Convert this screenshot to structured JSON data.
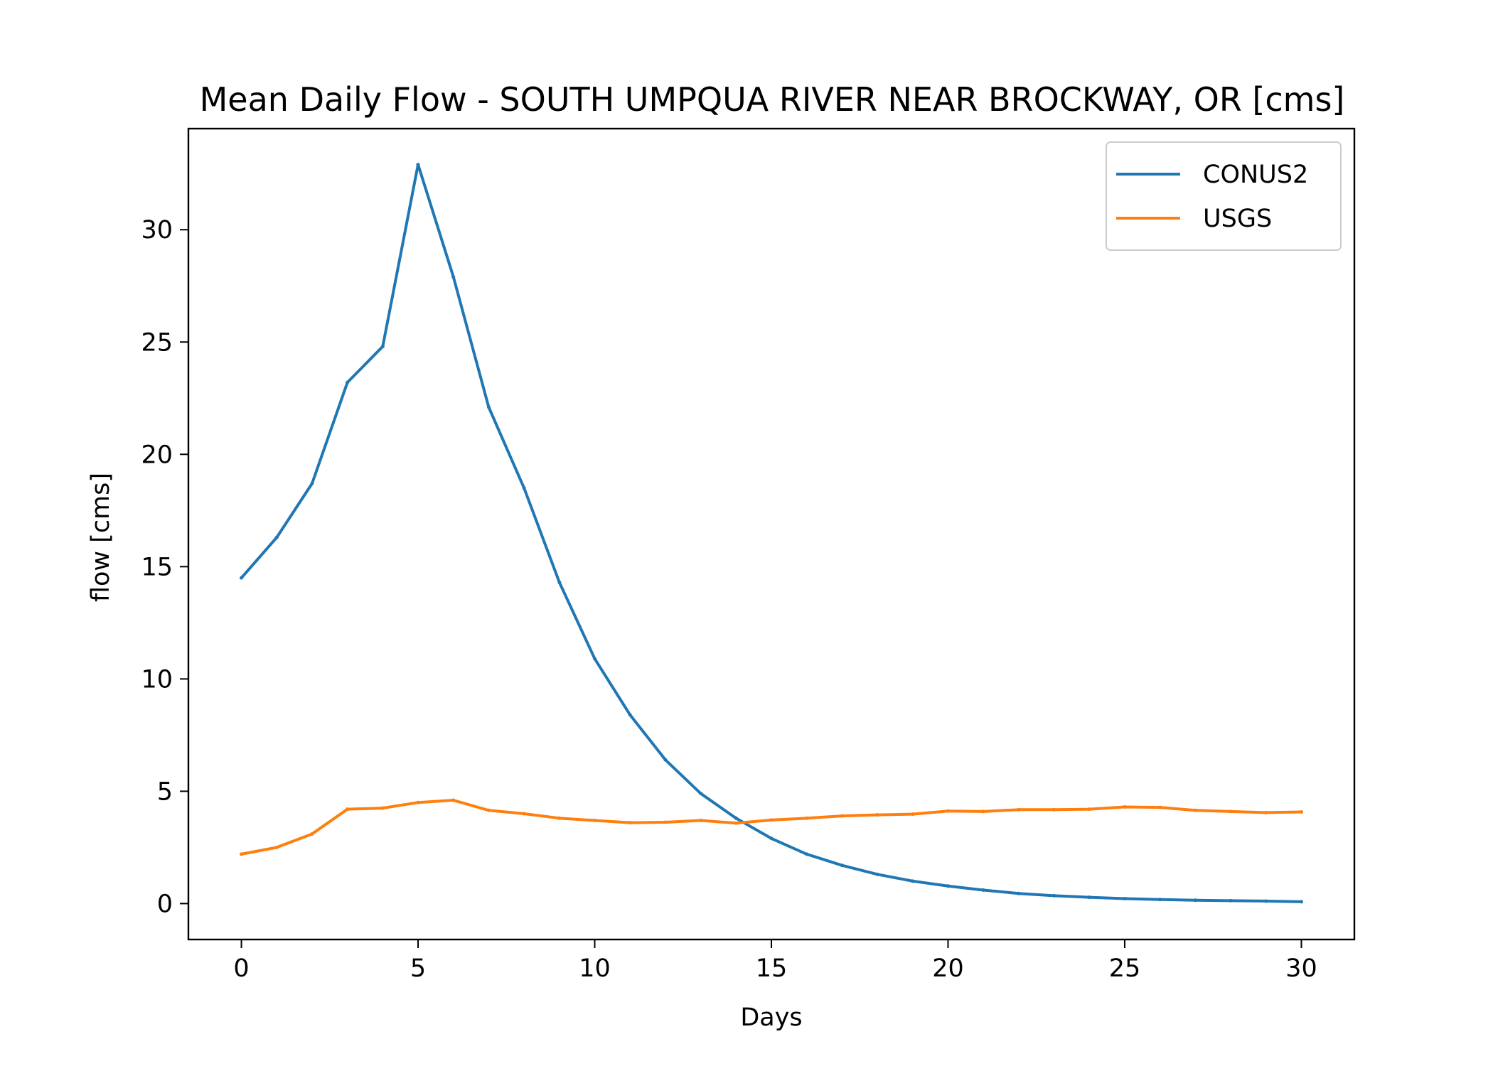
{
  "chart_data": {
    "type": "line",
    "title": "Mean Daily Flow - SOUTH UMPQUA RIVER NEAR BROCKWAY, OR [cms]",
    "xlabel": "Days",
    "ylabel": "flow [cms]",
    "xlim": [
      -1.5,
      31.5
    ],
    "ylim": [
      -1.6,
      34.5
    ],
    "xticks": [
      0,
      5,
      10,
      15,
      20,
      25,
      30
    ],
    "yticks": [
      0,
      5,
      10,
      15,
      20,
      25,
      30
    ],
    "grid": false,
    "legend_position": "top-right",
    "x": [
      0,
      1,
      2,
      3,
      4,
      5,
      6,
      7,
      8,
      9,
      10,
      11,
      12,
      13,
      14,
      15,
      16,
      17,
      18,
      19,
      20,
      21,
      22,
      23,
      24,
      25,
      26,
      27,
      28,
      29,
      30
    ],
    "series": [
      {
        "name": "CONUS2",
        "color": "#1f77b4",
        "values": [
          14.5,
          16.3,
          18.7,
          23.2,
          24.8,
          32.9,
          27.9,
          22.1,
          18.5,
          14.3,
          10.9,
          8.4,
          6.4,
          4.9,
          3.8,
          2.9,
          2.2,
          1.7,
          1.3,
          1.0,
          0.78,
          0.6,
          0.45,
          0.35,
          0.28,
          0.22,
          0.18,
          0.15,
          0.13,
          0.11,
          0.08
        ]
      },
      {
        "name": "USGS",
        "color": "#ff7f0e",
        "values": [
          2.2,
          2.5,
          3.1,
          4.2,
          4.25,
          4.5,
          4.6,
          4.15,
          4.0,
          3.8,
          3.7,
          3.6,
          3.62,
          3.7,
          3.58,
          3.72,
          3.8,
          3.9,
          3.95,
          3.98,
          4.12,
          4.1,
          4.18,
          4.18,
          4.2,
          4.3,
          4.28,
          4.15,
          4.1,
          4.05,
          4.08
        ]
      }
    ]
  }
}
